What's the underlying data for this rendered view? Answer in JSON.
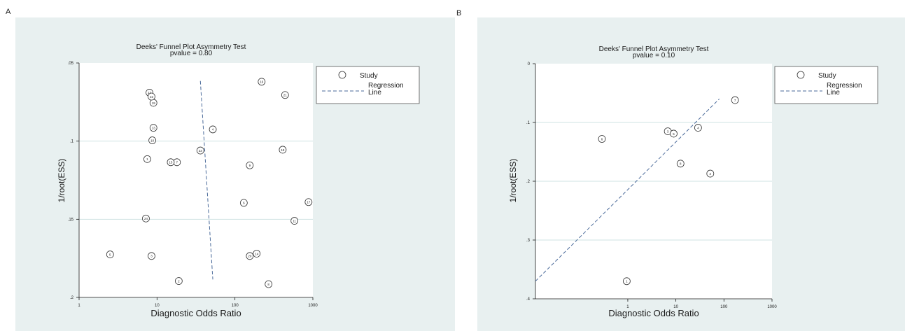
{
  "colors": {
    "page_background": "#ffffff",
    "panel_background": "#e8f0f0",
    "plot_background": "#ffffff",
    "gridline": "#cfe3e3",
    "text": "#1a1a1a",
    "regression_line": "#4a6a9a",
    "marker_stroke": "#333333"
  },
  "panels": [
    {
      "letter": "A"
    },
    {
      "letter": "B"
    }
  ],
  "chart_data": [
    {
      "type": "scatter",
      "title": "Deeks' Funnel Plot Asymmetry Test",
      "subtitle": "pvalue  =  0.80",
      "xlabel": "Diagnostic Odds Ratio",
      "ylabel": "1/root(ESS)",
      "x_scale": "log",
      "xlim": [
        1,
        1000
      ],
      "ylim": [
        0.05,
        0.2
      ],
      "y_inverted": true,
      "x_ticks": [
        1,
        10,
        100,
        1000
      ],
      "x_tick_labels": [
        "1",
        "10",
        "100",
        "1000"
      ],
      "y_ticks": [
        0.05,
        0.1,
        0.15,
        0.2
      ],
      "y_tick_labels": [
        ".05",
        ".1",
        ".15",
        ".2"
      ],
      "grid": true,
      "legend_position": "right",
      "legend": {
        "study_label": "Study",
        "regression_label": "Regression\nLine"
      },
      "series": [
        {
          "name": "Study",
          "points": [
            {
              "id": "1",
              "x": 7.5,
              "y": 0.1115
            },
            {
              "id": "2",
              "x": 19,
              "y": 0.1895
            },
            {
              "id": "3",
              "x": 8.5,
              "y": 0.1735
            },
            {
              "id": "4",
              "x": 52,
              "y": 0.0925
            },
            {
              "id": "5",
              "x": 2.5,
              "y": 0.1725
            },
            {
              "id": "6",
              "x": 130,
              "y": 0.1395
            },
            {
              "id": "7",
              "x": 18,
              "y": 0.1135
            },
            {
              "id": "8",
              "x": 270,
              "y": 0.1915
            },
            {
              "id": "9",
              "x": 155,
              "y": 0.1155
            },
            {
              "id": "10",
              "x": 8.7,
              "y": 0.0995
            },
            {
              "id": "11",
              "x": 580,
              "y": 0.151
            },
            {
              "id": "12",
              "x": 8.0,
              "y": 0.069
            },
            {
              "id": "13",
              "x": 9.0,
              "y": 0.0915
            },
            {
              "id": "14",
              "x": 190,
              "y": 0.172
            },
            {
              "id": "15",
              "x": 15,
              "y": 0.1135
            },
            {
              "id": "16",
              "x": 220,
              "y": 0.062
            },
            {
              "id": "17",
              "x": 880,
              "y": 0.139
            },
            {
              "id": "18",
              "x": 410,
              "y": 0.1055
            },
            {
              "id": "19",
              "x": 9.0,
              "y": 0.0755
            },
            {
              "id": "20",
              "x": 155,
              "y": 0.1735
            },
            {
              "id": "21",
              "x": 440,
              "y": 0.0705
            },
            {
              "id": "22",
              "x": 8.5,
              "y": 0.0715
            },
            {
              "id": "23",
              "x": 36,
              "y": 0.106
            },
            {
              "id": "24",
              "x": 7.2,
              "y": 0.1495
            }
          ]
        },
        {
          "name": "Regression Line",
          "line": [
            {
              "x": 36,
              "y": 0.0615
            },
            {
              "x": 52,
              "y": 0.1885
            }
          ]
        }
      ]
    },
    {
      "type": "scatter",
      "title": "Deeks' Funnel Plot Asymmetry Test",
      "subtitle": "pvalue  =  0.10",
      "xlabel": "Diagnostic Odds Ratio",
      "ylabel": "1/root(ESS)",
      "x_scale": "log",
      "xlim": [
        0.012,
        1000
      ],
      "ylim": [
        0,
        0.4
      ],
      "y_inverted": true,
      "x_ticks": [
        1,
        10,
        100,
        1000
      ],
      "x_tick_labels": [
        "1",
        "10",
        "100",
        "1000"
      ],
      "y_ticks": [
        0,
        0.1,
        0.2,
        0.3,
        0.4
      ],
      "y_tick_labels": [
        "0",
        ".1",
        ".2",
        ".3",
        ".4"
      ],
      "grid": true,
      "legend_position": "right",
      "legend": {
        "study_label": "Study",
        "regression_label": "Regression\nLine"
      },
      "series": [
        {
          "name": "Study",
          "points": [
            {
              "id": "1",
              "x": 0.95,
              "y": 0.37
            },
            {
              "id": "2",
              "x": 52,
              "y": 0.187
            },
            {
              "id": "3",
              "x": 6.8,
              "y": 0.115
            },
            {
              "id": "4",
              "x": 29,
              "y": 0.109
            },
            {
              "id": "5",
              "x": 9.0,
              "y": 0.119
            },
            {
              "id": "6",
              "x": 0.29,
              "y": 0.128
            },
            {
              "id": "7",
              "x": 170,
              "y": 0.062
            },
            {
              "id": "8",
              "x": 12.5,
              "y": 0.17
            }
          ]
        },
        {
          "name": "Regression Line",
          "line": [
            {
              "x": 0.012,
              "y": 0.37
            },
            {
              "x": 80,
              "y": 0.06
            }
          ]
        }
      ]
    }
  ]
}
